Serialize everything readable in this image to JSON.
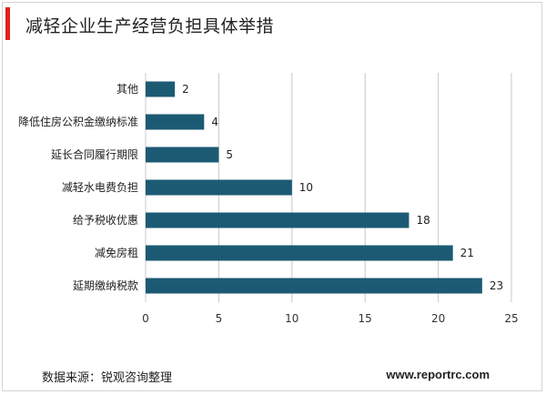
{
  "title": "减轻企业生产经营负担具体举措",
  "footer": {
    "source": "数据来源：锐观咨询整理",
    "url": "www.reportrc.com"
  },
  "colors": {
    "bar": "#1c5a73",
    "grid": "#c8c8c8",
    "accent": "#e0201b"
  },
  "chart_data": {
    "type": "bar",
    "orientation": "horizontal",
    "categories": [
      "其他",
      "降低住房公积金缴纳标准",
      "延长合同履行期限",
      "减轻水电费负担",
      "给予税收优惠",
      "减免房租",
      "延期缴纳税款"
    ],
    "values": [
      2,
      4,
      5,
      10,
      18,
      21,
      23
    ],
    "xlim": [
      0,
      25
    ],
    "xticks": [
      0,
      5,
      10,
      15,
      20,
      25
    ],
    "grid": true,
    "legend": "none"
  }
}
